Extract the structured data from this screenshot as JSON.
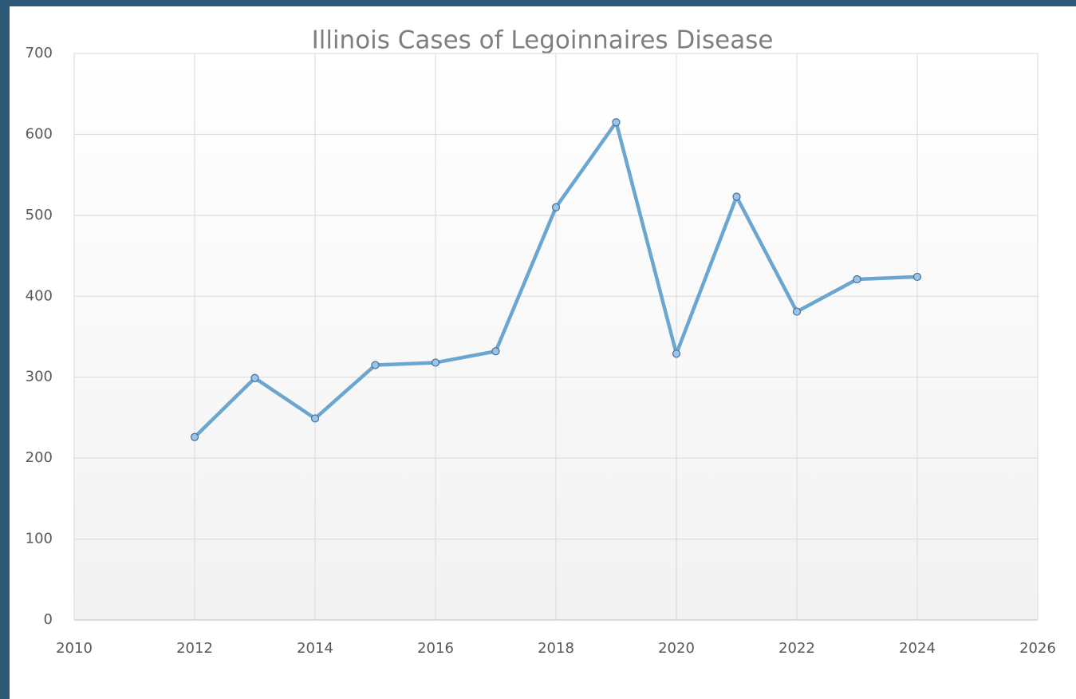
{
  "chart_data": {
    "type": "line",
    "title": "Illinois Cases of Legoinnaires Disease",
    "x": [
      2012,
      2013,
      2014,
      2015,
      2016,
      2017,
      2018,
      2019,
      2020,
      2021,
      2022,
      2023,
      2024
    ],
    "series": [
      {
        "name": "Cases",
        "color": "#6aa6d0",
        "values": [
          226,
          299,
          249,
          315,
          318,
          332,
          510,
          615,
          329,
          523,
          381,
          421,
          424
        ]
      }
    ],
    "xlim": [
      2010,
      2026
    ],
    "xticks": [
      2010,
      2012,
      2014,
      2016,
      2018,
      2020,
      2022,
      2024,
      2026
    ],
    "ylim": [
      0,
      700
    ],
    "yticks": [
      0,
      100,
      200,
      300,
      400,
      500,
      600,
      700
    ],
    "grid": true
  }
}
